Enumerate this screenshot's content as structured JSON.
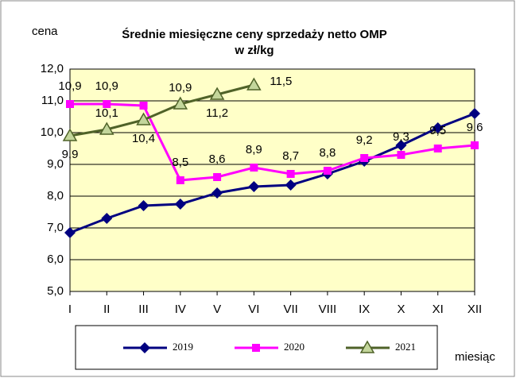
{
  "chart_data": {
    "type": "line",
    "title": "Średnie miesięczne ceny sprzedaży netto OMP",
    "subtitle": "w zł/kg",
    "y_label": "cena",
    "x_label": "miesiąc",
    "categories": [
      "I",
      "II",
      "III",
      "IV",
      "V",
      "VI",
      "VII",
      "VIII",
      "IX",
      "X",
      "XI",
      "XII"
    ],
    "ylim": [
      5,
      12
    ],
    "yticks": [
      {
        "value": 5,
        "label": "5,0"
      },
      {
        "value": 6,
        "label": "6,0"
      },
      {
        "value": 7,
        "label": "7,0"
      },
      {
        "value": 8,
        "label": "8,0"
      },
      {
        "value": 9,
        "label": "9,0"
      },
      {
        "value": 10,
        "label": "10,0"
      },
      {
        "value": 11,
        "label": "11,0"
      },
      {
        "value": 12,
        "label": "12,0"
      }
    ],
    "grid": true,
    "legend": "bottom",
    "series": [
      {
        "name": "2019",
        "color": "#000080",
        "marker": "diamond",
        "values": [
          6.85,
          7.3,
          7.7,
          7.75,
          8.1,
          8.3,
          8.35,
          8.7,
          9.1,
          9.6,
          10.15,
          10.6
        ]
      },
      {
        "name": "2020",
        "color": "#ff00ff",
        "marker": "square",
        "values": [
          10.9,
          10.9,
          10.85,
          8.5,
          8.6,
          8.9,
          8.7,
          8.8,
          9.2,
          9.3,
          9.5,
          9.6
        ],
        "value_labels": [
          "10,9",
          "10,9",
          null,
          "8,5",
          "8,6",
          "8,9",
          "8,7",
          "8,8",
          "9,2",
          "9,3",
          "9,5",
          "9,6"
        ]
      },
      {
        "name": "2021",
        "color": "#4f6228",
        "marker": "triangle",
        "values": [
          9.9,
          10.1,
          10.4,
          10.9,
          11.2,
          11.5,
          null,
          null,
          null,
          null,
          null,
          null
        ],
        "value_labels": [
          "9,9",
          "10,1",
          "10,4",
          "10,9",
          "11,2",
          "11,5",
          null,
          null,
          null,
          null,
          null,
          null
        ]
      }
    ]
  }
}
